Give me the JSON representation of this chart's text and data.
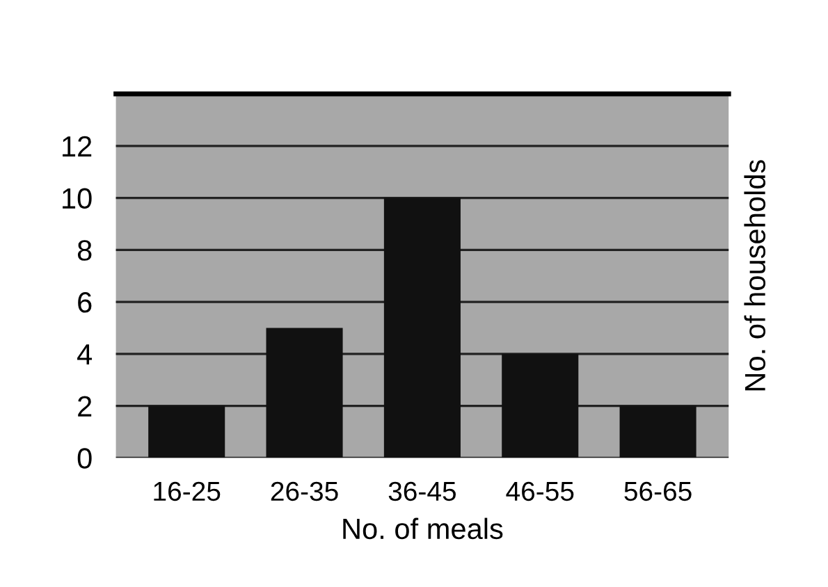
{
  "chart_data": {
    "type": "bar",
    "xlabel": "No. of meals",
    "ylabel": "No. of households",
    "categories": [
      "16-25",
      "26-35",
      "36-45",
      "46-55",
      "56-65"
    ],
    "values": [
      2,
      5,
      10,
      4,
      2
    ],
    "color": "#111111",
    "ylim": [
      0,
      14
    ],
    "yticks": [
      0,
      2,
      4,
      6,
      8,
      10,
      12
    ],
    "grid": "y"
  }
}
